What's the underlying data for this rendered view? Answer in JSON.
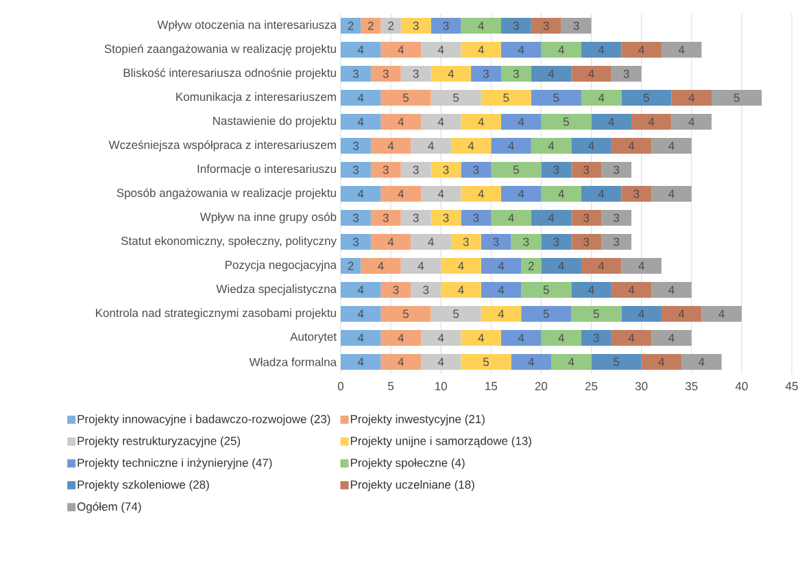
{
  "chart_data": {
    "type": "bar",
    "orientation": "horizontal",
    "stacked": true,
    "categories": [
      "Wpływ otoczenia na interesariusza",
      "Stopień zaangażowania w realizację projektu",
      "Bliskość interesariusza odnośnie projektu",
      "Komunikacja z interesariuszem",
      "Nastawienie do projektu",
      "Wcześniejsza współpraca z interesariuszem",
      "Informacje o interesariuszu",
      "Sposób angażowania w realizacje projektu",
      "Wpływ na inne grupy osób",
      "Statut ekonomiczny, społeczny, polityczny",
      "Pozycja negocjacyjna",
      "Wiedza specjalistyczna",
      "Kontrola nad strategicznymi zasobami projektu",
      "Autorytet",
      "Władza formalna"
    ],
    "series": [
      {
        "name": "Projekty innowacyjne i badawczo-rozwojowe (23)",
        "color": "#7cb1e0",
        "values": [
          2,
          4,
          3,
          4,
          4,
          3,
          3,
          4,
          3,
          3,
          2,
          4,
          4,
          4,
          4
        ]
      },
      {
        "name": "Projekty inwestycyjne (21)",
        "color": "#f4a67a",
        "values": [
          2,
          4,
          3,
          5,
          4,
          4,
          3,
          4,
          3,
          4,
          4,
          3,
          5,
          4,
          4
        ]
      },
      {
        "name": "Projekty restrukturyzacyjne (25)",
        "color": "#cbcbcb",
        "values": [
          2,
          4,
          3,
          5,
          4,
          4,
          3,
          4,
          3,
          4,
          4,
          3,
          5,
          4,
          4
        ]
      },
      {
        "name": "Projekty unijne i samorządowe (13)",
        "color": "#ffd257",
        "values": [
          3,
          4,
          4,
          5,
          4,
          4,
          3,
          4,
          3,
          3,
          4,
          4,
          4,
          4,
          5
        ]
      },
      {
        "name": "Projekty techniczne i inżynieryjne (47)",
        "color": "#6f98d8",
        "values": [
          3,
          4,
          3,
          5,
          4,
          4,
          3,
          4,
          3,
          3,
          4,
          4,
          5,
          4,
          4
        ]
      },
      {
        "name": "Projekty społeczne (4)",
        "color": "#96c983",
        "values": [
          4,
          4,
          3,
          4,
          5,
          4,
          5,
          4,
          4,
          3,
          2,
          5,
          5,
          4,
          4
        ]
      },
      {
        "name": "Projekty szkoleniowe (28)",
        "color": "#5890c0",
        "values": [
          3,
          4,
          4,
          5,
          4,
          4,
          3,
          4,
          4,
          3,
          4,
          4,
          4,
          3,
          5
        ]
      },
      {
        "name": "Projekty uczelniane (18)",
        "color": "#c47c5e",
        "values": [
          3,
          4,
          4,
          4,
          4,
          4,
          3,
          3,
          3,
          3,
          4,
          4,
          4,
          4,
          4
        ]
      },
      {
        "name": "Ogółem (74)",
        "color": "#a3a3a3",
        "values": [
          3,
          4,
          3,
          5,
          4,
          4,
          3,
          4,
          3,
          3,
          4,
          4,
          4,
          4,
          4
        ]
      }
    ],
    "xlim": [
      0,
      45
    ],
    "xticks": [
      0,
      5,
      10,
      15,
      20,
      25,
      30,
      35,
      40,
      45
    ],
    "grid": "x",
    "legend": "bottom",
    "data_labels": true
  }
}
